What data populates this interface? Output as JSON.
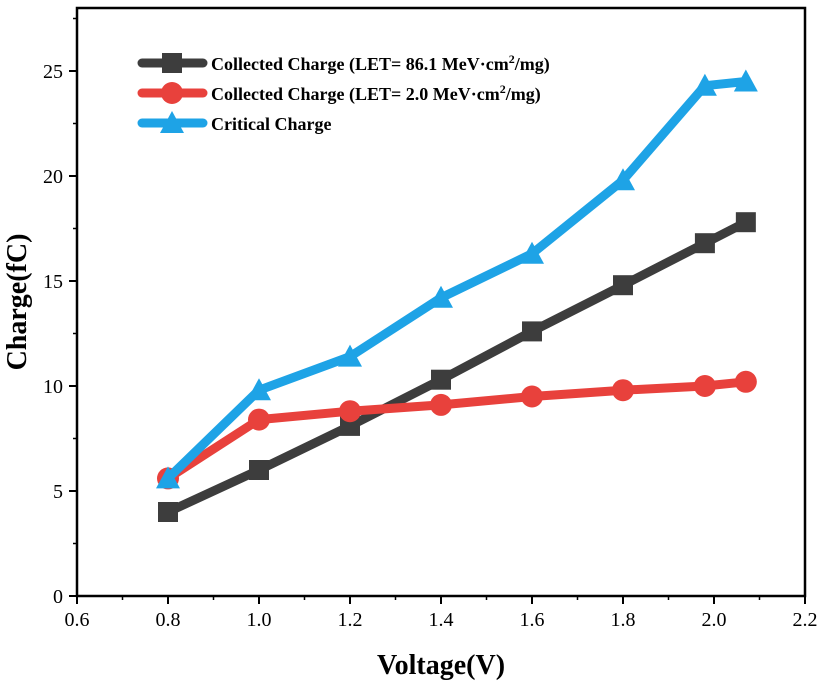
{
  "chart_data": {
    "type": "line",
    "title": "",
    "xlabel": "Voltage(V)",
    "ylabel": "Charge(fC)",
    "xlim": [
      0.6,
      2.2
    ],
    "ylim": [
      0,
      28
    ],
    "x_ticks": [
      0.6,
      0.8,
      1.0,
      1.2,
      1.4,
      1.6,
      1.8,
      2.0,
      2.2
    ],
    "x_tick_labels": [
      "0.6",
      "0.8",
      "1.0",
      "1.2",
      "1.4",
      "1.6",
      "1.8",
      "2.0",
      "2.2"
    ],
    "y_ticks": [
      0,
      5,
      10,
      15,
      20,
      25
    ],
    "y_tick_labels": [
      "0",
      "5",
      "10",
      "15",
      "20",
      "25"
    ],
    "grid": false,
    "legend_position": "top-left",
    "series": [
      {
        "name": "Collected Charge (LET= 86.1 MeV·cm²/mg)",
        "legend_prefix": "Collected Charge (LET= 86.1 MeV·cm",
        "legend_sup": "2",
        "legend_suffix": "/mg)",
        "color": "#3d3d3d",
        "marker": "square",
        "x": [
          0.8,
          1.0,
          1.2,
          1.4,
          1.6,
          1.8,
          1.98,
          2.07
        ],
        "values": [
          4.0,
          6.0,
          8.1,
          10.3,
          12.6,
          14.8,
          16.8,
          17.8
        ]
      },
      {
        "name": "Collected Charge (LET=  2.0  MeV·cm²/mg)",
        "legend_prefix": "Collected Charge (LET=  2.0  MeV·cm",
        "legend_sup": "2",
        "legend_suffix": "/mg)",
        "color": "#e8413c",
        "marker": "circle",
        "x": [
          0.8,
          1.0,
          1.2,
          1.4,
          1.6,
          1.8,
          1.98,
          2.07
        ],
        "values": [
          5.6,
          8.4,
          8.8,
          9.1,
          9.5,
          9.8,
          10.0,
          10.2
        ]
      },
      {
        "name": "Critical Charge",
        "legend_prefix": "Critical Charge",
        "legend_sup": "",
        "legend_suffix": "",
        "color": "#1ea3e6",
        "marker": "triangle",
        "x": [
          0.8,
          1.0,
          1.2,
          1.4,
          1.6,
          1.8,
          1.98,
          2.07
        ],
        "values": [
          5.6,
          9.8,
          11.4,
          14.2,
          16.3,
          19.8,
          24.3,
          24.5
        ]
      }
    ]
  }
}
